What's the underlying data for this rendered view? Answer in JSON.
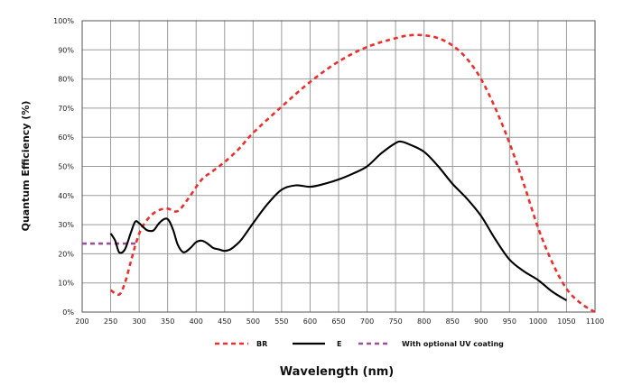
{
  "chart_data": {
    "type": "line",
    "xlabel": "Wavelength (nm)",
    "ylabel": "Quantum Efficiency (%)",
    "xlim": [
      200,
      1100
    ],
    "ylim": [
      0,
      100
    ],
    "x_ticks": [
      200,
      250,
      300,
      350,
      400,
      450,
      500,
      550,
      600,
      650,
      700,
      750,
      800,
      850,
      900,
      950,
      1000,
      1050,
      1100
    ],
    "y_ticks": [
      0,
      10,
      20,
      30,
      40,
      50,
      60,
      70,
      80,
      90,
      100
    ],
    "y_tick_suffix": "%",
    "grid": true,
    "legend_position": "bottom",
    "series": [
      {
        "name": "BR",
        "color": "#e8312f",
        "style": "dashed",
        "points": [
          [
            250,
            7.5
          ],
          [
            265,
            6
          ],
          [
            275,
            10
          ],
          [
            285,
            17
          ],
          [
            295,
            24
          ],
          [
            305,
            29
          ],
          [
            320,
            33
          ],
          [
            335,
            35
          ],
          [
            350,
            35.5
          ],
          [
            365,
            34.5
          ],
          [
            375,
            36
          ],
          [
            390,
            40
          ],
          [
            410,
            45.5
          ],
          [
            430,
            48.5
          ],
          [
            450,
            51.5
          ],
          [
            475,
            56
          ],
          [
            500,
            61.5
          ],
          [
            550,
            70.5
          ],
          [
            600,
            79
          ],
          [
            650,
            86
          ],
          [
            700,
            91
          ],
          [
            750,
            94
          ],
          [
            775,
            95
          ],
          [
            800,
            95
          ],
          [
            825,
            94
          ],
          [
            850,
            91.5
          ],
          [
            875,
            87
          ],
          [
            900,
            80
          ],
          [
            925,
            70
          ],
          [
            950,
            58
          ],
          [
            975,
            44
          ],
          [
            1000,
            29
          ],
          [
            1025,
            17
          ],
          [
            1050,
            8
          ],
          [
            1075,
            3
          ],
          [
            1100,
            0
          ]
        ]
      },
      {
        "name": "E",
        "color": "#000000",
        "style": "solid",
        "points": [
          [
            250,
            27
          ],
          [
            258,
            24.5
          ],
          [
            265,
            20.5
          ],
          [
            275,
            21.5
          ],
          [
            285,
            27
          ],
          [
            293,
            31
          ],
          [
            300,
            30.5
          ],
          [
            308,
            29
          ],
          [
            315,
            28
          ],
          [
            325,
            28
          ],
          [
            335,
            30.5
          ],
          [
            345,
            32
          ],
          [
            352,
            31.5
          ],
          [
            360,
            28
          ],
          [
            368,
            23
          ],
          [
            378,
            20.5
          ],
          [
            390,
            22
          ],
          [
            400,
            24
          ],
          [
            410,
            24.5
          ],
          [
            420,
            23.5
          ],
          [
            430,
            22
          ],
          [
            440,
            21.5
          ],
          [
            450,
            21
          ],
          [
            460,
            21.5
          ],
          [
            470,
            23
          ],
          [
            480,
            25
          ],
          [
            500,
            30.5
          ],
          [
            525,
            37
          ],
          [
            550,
            42
          ],
          [
            575,
            43.5
          ],
          [
            600,
            43
          ],
          [
            625,
            44
          ],
          [
            650,
            45.5
          ],
          [
            675,
            47.5
          ],
          [
            700,
            50
          ],
          [
            725,
            54.5
          ],
          [
            750,
            58
          ],
          [
            760,
            58.5
          ],
          [
            775,
            57.5
          ],
          [
            800,
            55
          ],
          [
            825,
            50
          ],
          [
            850,
            44
          ],
          [
            875,
            39
          ],
          [
            900,
            33
          ],
          [
            925,
            25
          ],
          [
            950,
            18
          ],
          [
            975,
            14
          ],
          [
            1000,
            11
          ],
          [
            1025,
            7
          ],
          [
            1050,
            4
          ]
        ]
      },
      {
        "name": "With optional UV coating",
        "color": "#9b4f96",
        "style": "dashed",
        "points": [
          [
            200,
            23.5
          ],
          [
            300,
            23.5
          ]
        ]
      }
    ]
  }
}
